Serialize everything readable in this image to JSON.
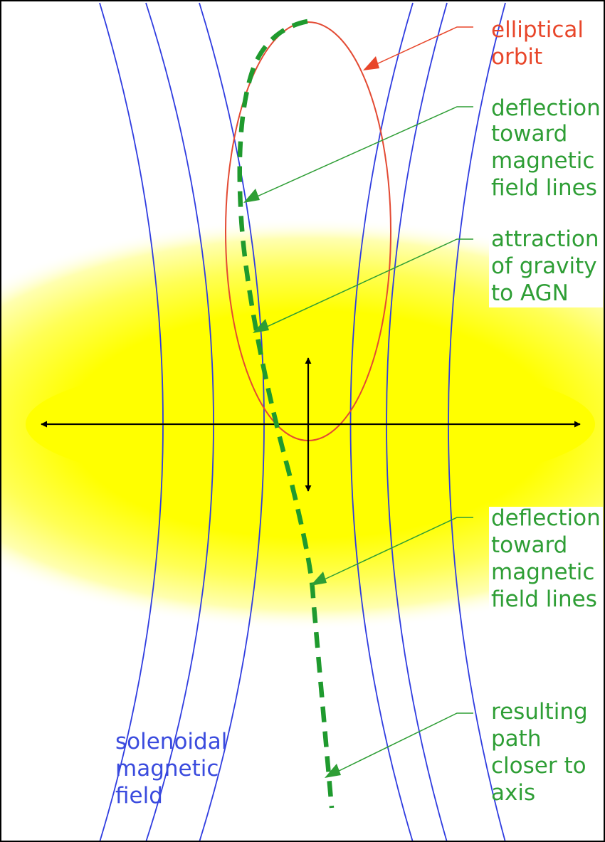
{
  "labels": {
    "orbit": [
      "elliptical",
      "orbit"
    ],
    "deflection_upper": [
      "deflection",
      "toward",
      "magnetic",
      "field lines"
    ],
    "gravity": [
      "attraction",
      "of gravity",
      "to AGN"
    ],
    "deflection_lower": [
      "deflection",
      "toward",
      "magnetic",
      "field lines"
    ],
    "resulting_path": [
      "resulting",
      "path",
      "closer to",
      "axis"
    ],
    "field": [
      "solenoidal",
      "magnetic",
      "field"
    ]
  },
  "colors": {
    "field_lines": "#2f3ce0",
    "orbit": "#e34a33",
    "path": "#1f9a2e",
    "annotation": "#2e9e35",
    "disk": "#ffff00",
    "axes": "#000000"
  }
}
